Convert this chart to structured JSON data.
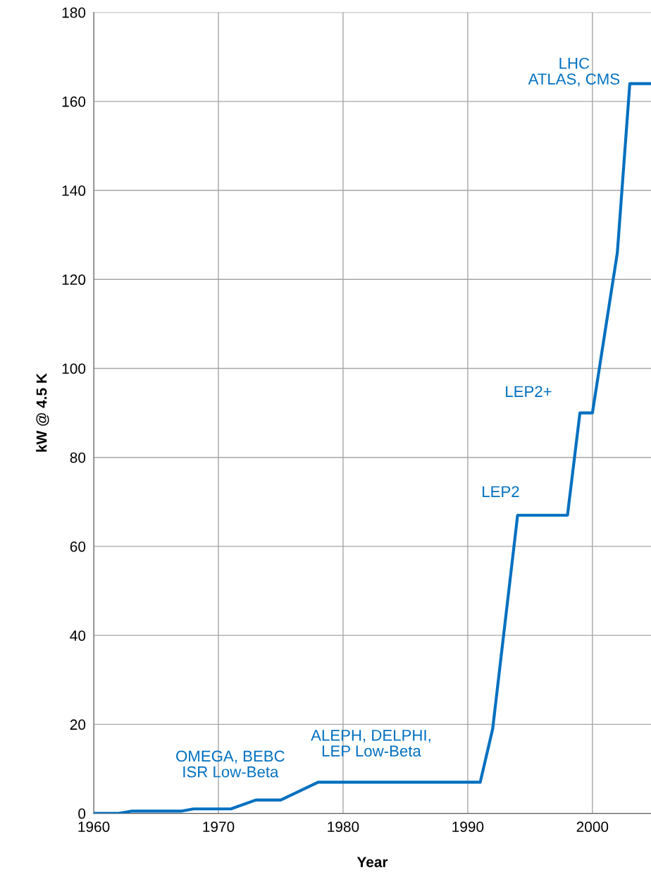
{
  "chart_data": {
    "type": "line",
    "xlabel": "Year",
    "ylabel": "kW @ 4.5 K",
    "x": [
      1960,
      1962,
      1963,
      1967,
      1968,
      1971,
      1973,
      1975,
      1978,
      1991,
      1992,
      1994,
      1998,
      1999,
      2000,
      2002,
      2003,
      2004.7
    ],
    "series": [
      {
        "color": "#0070c0",
        "values": [
          0,
          0,
          0.5,
          0.5,
          1,
          1,
          3,
          3,
          7,
          7,
          19,
          67,
          67,
          90,
          90,
          126,
          164,
          164
        ]
      }
    ],
    "xlim": [
      1960,
      2004.7
    ],
    "xticks": [
      1960,
      1970,
      1980,
      1990,
      2000
    ],
    "ylim": [
      0,
      180
    ],
    "yticks": [
      0,
      20,
      40,
      60,
      80,
      100,
      120,
      140,
      160,
      180
    ],
    "grid": true,
    "marker": "none",
    "line_style": "solid",
    "annotations": [
      "OMEGA, BEBC\nISR Low-Beta",
      "ALEPH, DELPHI,\nLEP Low-Beta",
      "LEP2",
      "LEP2+",
      "LHC\nATLAS, CMS"
    ]
  }
}
